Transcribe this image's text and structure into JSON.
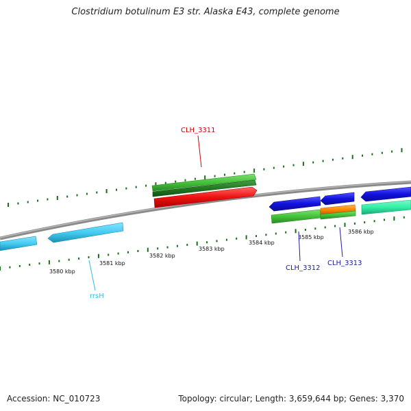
{
  "title": "Clostridium botulinum E3 str. Alaska E43, complete genome",
  "footer": {
    "accession": "Accession: NC_010723",
    "summary": "Topology: circular; Length: 3,659,644 bp; Genes: 3,370"
  },
  "ticks": [
    {
      "kbp": 3580,
      "label": "3580 kbp"
    },
    {
      "kbp": 3581,
      "label": "3581 kbp"
    },
    {
      "kbp": 3582,
      "label": "3582 kbp"
    },
    {
      "kbp": 3583,
      "label": "3583 kbp"
    },
    {
      "kbp": 3584,
      "label": "3584 kbp"
    },
    {
      "kbp": 3585,
      "label": "3585 kbp"
    },
    {
      "kbp": 3586,
      "label": "3586 kbp"
    }
  ],
  "gene_labels": [
    {
      "id": "CLH_3311",
      "text": "CLH_3311",
      "color": "#cc0000"
    },
    {
      "id": "CLH_3312",
      "text": "CLH_3312",
      "color": "#1a1aa6"
    },
    {
      "id": "CLH_3313",
      "text": "CLH_3313",
      "color": "#1a1aa6"
    },
    {
      "id": "rrsH",
      "text": "rrsH",
      "color": "#33bbdd"
    }
  ],
  "colors": {
    "backbone": "#8a8a8a",
    "tick": "#1a6e1a",
    "cds_red": "#ee1111",
    "cds_blue": "#1111dd",
    "rrna_lightblue": "#44ccf2",
    "green": "#44c23a",
    "dark_green": "#227a22",
    "orange": "#ff8800",
    "aqua": "#33f0a8"
  }
}
